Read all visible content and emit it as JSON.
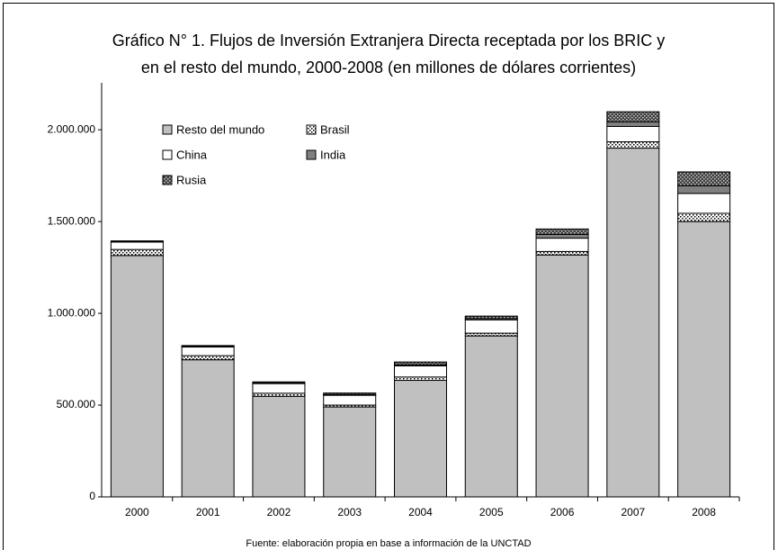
{
  "chart_data": {
    "type": "stacked_bar",
    "title": [
      "Gráfico N° 1. Flujos de Inversión Extranjera Directa receptada por los BRIC y",
      "en el resto del mundo, 2000-2008 (en millones de dólares corrientes)"
    ],
    "source": "Fuente: elaboración propia en base a información de la UNCTAD",
    "categories": [
      "2000",
      "2001",
      "2002",
      "2003",
      "2004",
      "2005",
      "2006",
      "2007",
      "2008"
    ],
    "series": [
      {
        "name": "Resto del mundo",
        "color": "#c0c0c0",
        "values": [
          1315000,
          747000,
          548000,
          490000,
          635000,
          877000,
          1318000,
          1900000,
          1500000
        ]
      },
      {
        "name": "Brasil",
        "color": "#ffffff",
        "pattern": "dots",
        "values": [
          32800,
          22500,
          16600,
          10100,
          18100,
          15100,
          18800,
          34600,
          45100
        ]
      },
      {
        "name": "China",
        "color": "#ffffff",
        "values": [
          40700,
          46900,
          52700,
          53500,
          60600,
          72400,
          72700,
          83500,
          108300
        ]
      },
      {
        "name": "India",
        "color": "#808080",
        "values": [
          3600,
          5500,
          5600,
          4300,
          5800,
          7600,
          20300,
          25100,
          41600
        ]
      },
      {
        "name": "Rusia",
        "color": "#404040",
        "pattern": "dots",
        "values": [
          2700,
          2700,
          3500,
          8000,
          15400,
          12900,
          29700,
          55100,
          75500
        ]
      }
    ],
    "ylim": [
      0,
      2300000
    ],
    "yticks": [
      0,
      {
        "value": 500000,
        "label": "500.000"
      },
      {
        "value": 1000000,
        "label": "1.000.000"
      },
      {
        "value": 1500000,
        "label": "1.500.000"
      },
      {
        "value": 2000000,
        "label": "2.000.000"
      }
    ],
    "grid": false,
    "legend": "top-left"
  }
}
